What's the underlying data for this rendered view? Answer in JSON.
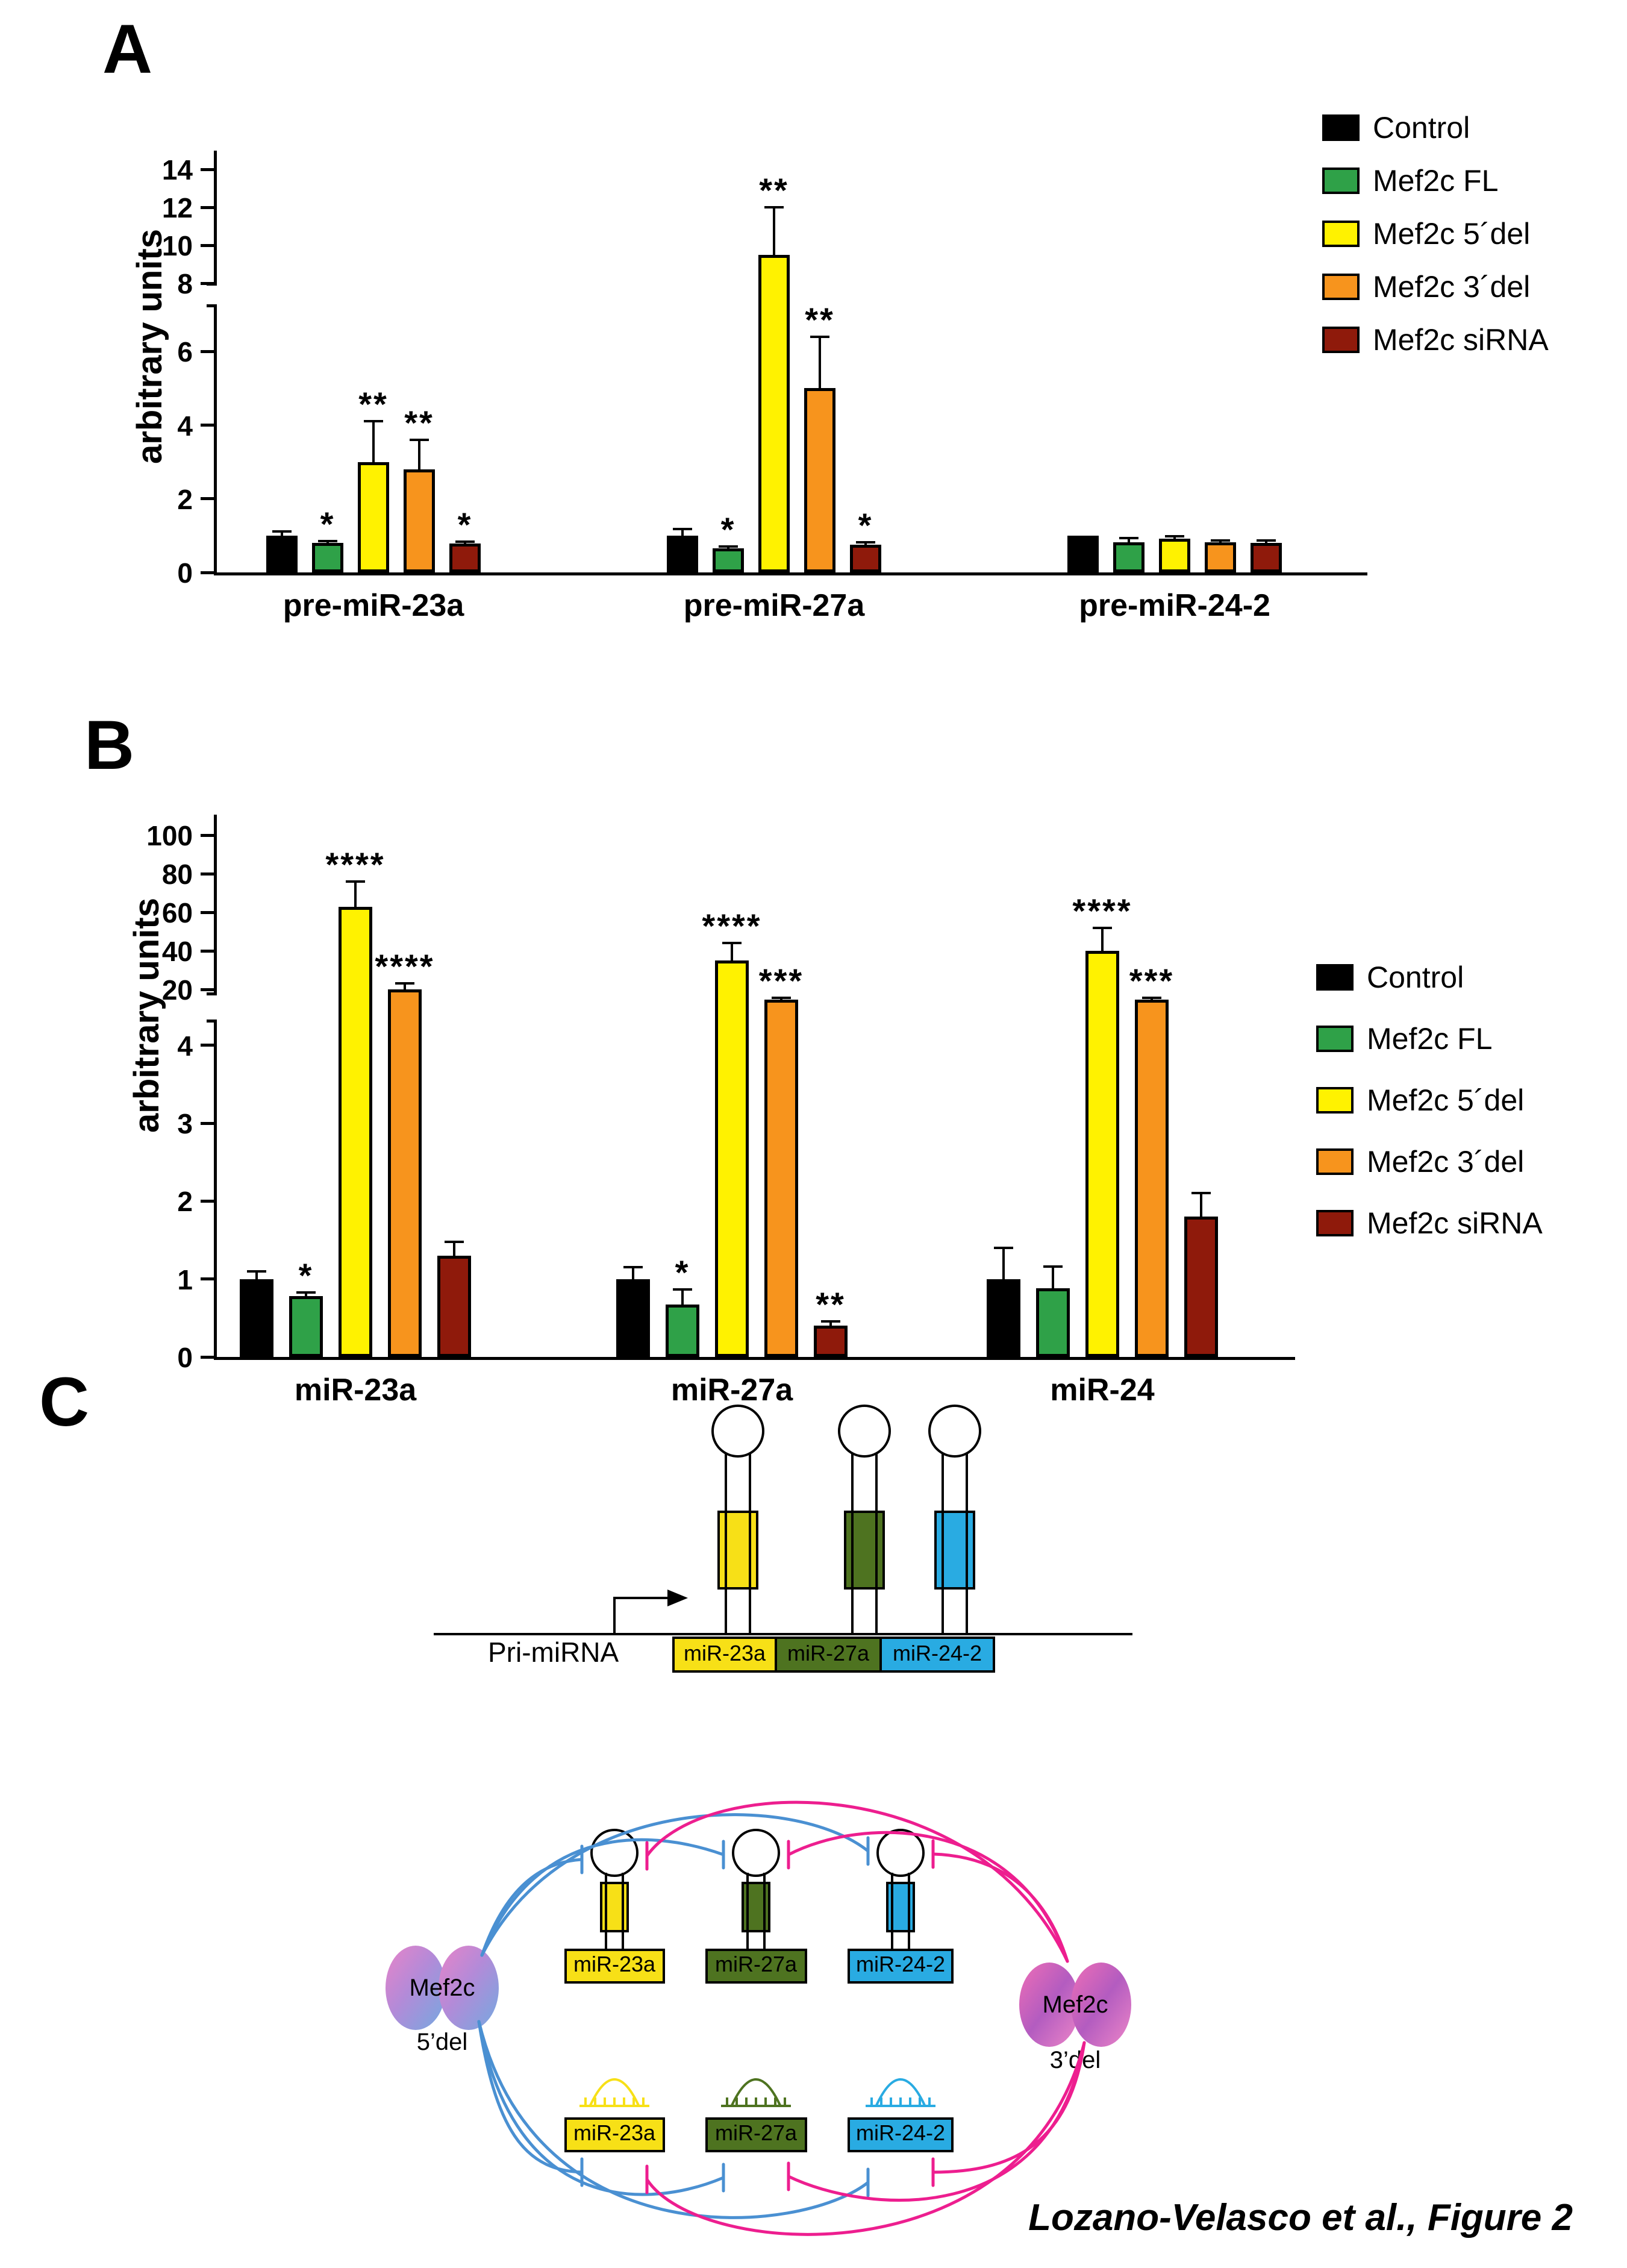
{
  "figure": {
    "caption": "Lozano-Velasco et al., Figure 2"
  },
  "panels": {
    "a": "A",
    "b": "B",
    "c": "C"
  },
  "chart_data": [
    {
      "type": "bar",
      "panel": "A",
      "title": "",
      "ylabel": "arbitrary units",
      "categories": [
        "pre-miR-23a",
        "pre-miR-27a",
        "pre-miR-24-2"
      ],
      "y_axis": {
        "lower_ticks": [
          0,
          2,
          4,
          6
        ],
        "upper_ticks": [
          8,
          10,
          12,
          14
        ],
        "break": true,
        "ylim": [
          0,
          15
        ]
      },
      "series": [
        {
          "name": "Control",
          "color": "#000000",
          "values": [
            1.0,
            1.0,
            1.0
          ],
          "errors": [
            0.12,
            0.18,
            0.0
          ],
          "sig": [
            "",
            "",
            ""
          ]
        },
        {
          "name": "Mef2c FL",
          "color": "#2fa148",
          "values": [
            0.8,
            0.65,
            0.82
          ],
          "errors": [
            0.05,
            0.06,
            0.12
          ],
          "sig": [
            "*",
            "*",
            ""
          ]
        },
        {
          "name": "Mef2c 5´del",
          "color": "#fff200",
          "values": [
            3.0,
            9.5,
            0.92
          ],
          "errors": [
            1.1,
            2.5,
            0.06
          ],
          "sig": [
            "**",
            "**",
            ""
          ]
        },
        {
          "name": "Mef2c 3´del",
          "color": "#f7941d",
          "values": [
            2.8,
            5.0,
            0.82
          ],
          "errors": [
            0.8,
            1.4,
            0.05
          ],
          "sig": [
            "**",
            "**",
            ""
          ]
        },
        {
          "name": "Mef2c siRNA",
          "color": "#8f1a0b",
          "values": [
            0.78,
            0.75,
            0.8
          ],
          "errors": [
            0.06,
            0.07,
            0.06
          ],
          "sig": [
            "*",
            "*",
            ""
          ]
        }
      ]
    },
    {
      "type": "bar",
      "panel": "B",
      "title": "",
      "ylabel": "arbitrary units",
      "categories": [
        "miR-23a",
        "miR-27a",
        "miR-24"
      ],
      "y_axis": {
        "lower_ticks": [
          0,
          1,
          2,
          3,
          4
        ],
        "upper_ticks": [
          20,
          40,
          60,
          80,
          100
        ],
        "break": true,
        "ylim": [
          0,
          106
        ]
      },
      "series": [
        {
          "name": "Control",
          "color": "#000000",
          "values": [
            1.0,
            1.0,
            1.0
          ],
          "errors": [
            0.1,
            0.15,
            0.4
          ],
          "sig": [
            "",
            "",
            ""
          ]
        },
        {
          "name": "Mef2c FL",
          "color": "#2fa148",
          "values": [
            0.78,
            0.67,
            0.88
          ],
          "errors": [
            0.05,
            0.2,
            0.28
          ],
          "sig": [
            "*",
            "*",
            ""
          ]
        },
        {
          "name": "Mef2c 5´del",
          "color": "#fff200",
          "values": [
            63,
            35,
            40
          ],
          "errors": [
            13,
            9,
            12
          ],
          "sig": [
            "****",
            "****",
            "****"
          ]
        },
        {
          "name": "Mef2c 3´del",
          "color": "#f7941d",
          "values": [
            20,
            15,
            15
          ],
          "errors": [
            3,
            1,
            1
          ],
          "sig": [
            "****",
            "***",
            "***"
          ]
        },
        {
          "name": "Mef2c siRNA",
          "color": "#8f1a0b",
          "values": [
            1.3,
            0.4,
            1.8
          ],
          "errors": [
            0.18,
            0.06,
            0.3
          ],
          "sig": [
            "",
            "**",
            ""
          ]
        }
      ]
    }
  ],
  "diagram": {
    "pri_mirna_label": "Pri-miRNA",
    "cluster": [
      "miR-23a",
      "miR-27a",
      "miR-24-2"
    ],
    "protein_left": {
      "name": "Mef2c",
      "variant": "5’del"
    },
    "protein_right": {
      "name": "Mef2c",
      "variant": "3’del"
    },
    "colors": {
      "mir23a": "#f7e017",
      "mir27a": "#4e7320",
      "mir24_2": "#29abe2",
      "inhibit_left": "#4a90d2",
      "inhibit_right": "#ed1e8f"
    }
  }
}
